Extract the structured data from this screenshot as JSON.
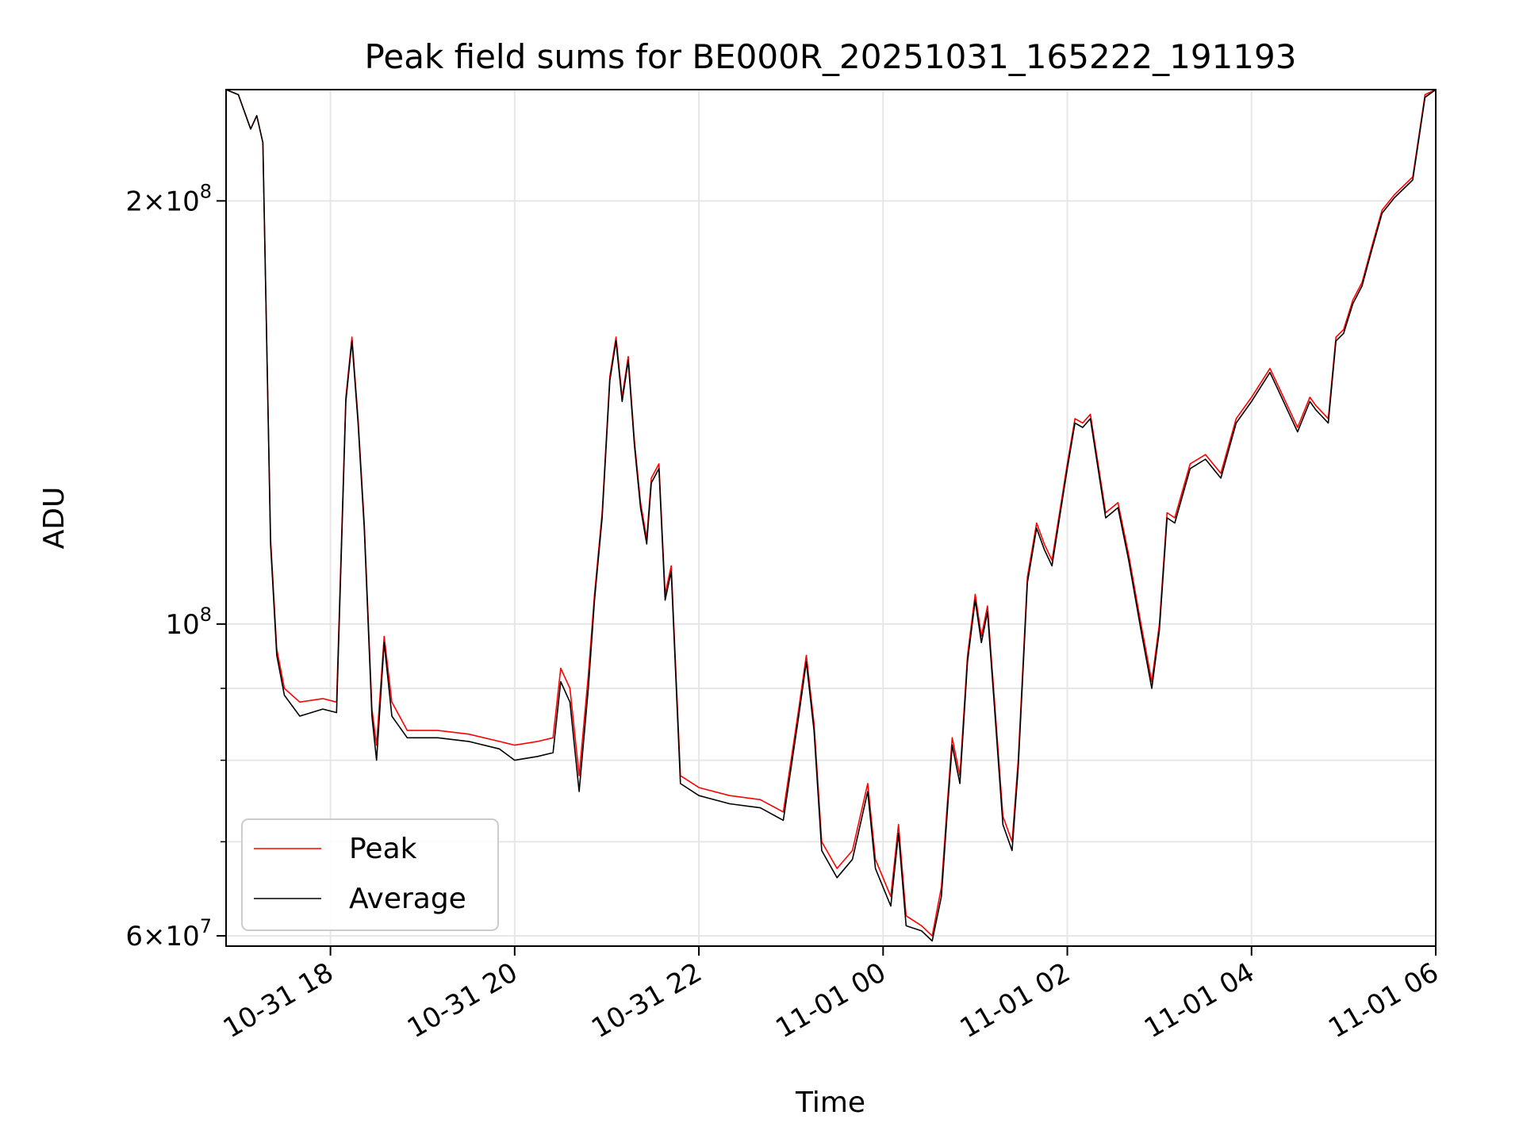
{
  "chart_data": {
    "type": "line",
    "title": "Peak field sums for BE000R_20251031_165222_191193",
    "xlabel": "Time",
    "ylabel": "ADU",
    "yscale": "log",
    "grid": true,
    "legend_position": "lower-left",
    "xlim": [
      "2025-10-31T16:52",
      "2025-11-01T06:00"
    ],
    "ylim": [
      59000000,
      240000000
    ],
    "x_ticks": [
      {
        "t": "2025-10-31T18:00",
        "label": "10-31 18"
      },
      {
        "t": "2025-10-31T20:00",
        "label": "10-31 20"
      },
      {
        "t": "2025-10-31T22:00",
        "label": "10-31 22"
      },
      {
        "t": "2025-11-01T00:00",
        "label": "11-01 00"
      },
      {
        "t": "2025-11-01T02:00",
        "label": "11-01 02"
      },
      {
        "t": "2025-11-01T04:00",
        "label": "11-01 04"
      },
      {
        "t": "2025-11-01T06:00",
        "label": "11-01 06"
      }
    ],
    "y_major_ticks": [
      {
        "v": 60000000,
        "mantissa": "6",
        "times": "×",
        "base": "10",
        "exp": "7"
      },
      {
        "v": 100000000,
        "mantissa": "",
        "times": "",
        "base": "10",
        "exp": "8"
      },
      {
        "v": 200000000,
        "mantissa": "2",
        "times": "×",
        "base": "10",
        "exp": "8"
      }
    ],
    "y_minor_ticks": [
      70000000,
      80000000,
      90000000
    ],
    "series": [
      {
        "name": "Peak",
        "color": "#ff0000",
        "points": [
          [
            "2025-10-31T16:52",
            240000000
          ],
          [
            "2025-10-31T17:00",
            238000000
          ],
          [
            "2025-10-31T17:08",
            225000000
          ],
          [
            "2025-10-31T17:12",
            230000000
          ],
          [
            "2025-10-31T17:16",
            220000000
          ],
          [
            "2025-10-31T17:21",
            115000000
          ],
          [
            "2025-10-31T17:25",
            96000000
          ],
          [
            "2025-10-31T17:30",
            90000000
          ],
          [
            "2025-10-31T17:40",
            88000000
          ],
          [
            "2025-10-31T17:55",
            88500000
          ],
          [
            "2025-10-31T18:04",
            88000000
          ],
          [
            "2025-10-31T18:10",
            145000000
          ],
          [
            "2025-10-31T18:14",
            160000000
          ],
          [
            "2025-10-31T18:18",
            140000000
          ],
          [
            "2025-10-31T18:22",
            118000000
          ],
          [
            "2025-10-31T18:27",
            87000000
          ],
          [
            "2025-10-31T18:30",
            82000000
          ],
          [
            "2025-10-31T18:35",
            98000000
          ],
          [
            "2025-10-31T18:40",
            88000000
          ],
          [
            "2025-10-31T18:50",
            84000000
          ],
          [
            "2025-10-31T19:10",
            84000000
          ],
          [
            "2025-10-31T19:30",
            83500000
          ],
          [
            "2025-10-31T19:50",
            82500000
          ],
          [
            "2025-10-31T20:00",
            82000000
          ],
          [
            "2025-10-31T20:15",
            82500000
          ],
          [
            "2025-10-31T20:25",
            83000000
          ],
          [
            "2025-10-31T20:30",
            93000000
          ],
          [
            "2025-10-31T20:36",
            90000000
          ],
          [
            "2025-10-31T20:42",
            78000000
          ],
          [
            "2025-10-31T20:48",
            92000000
          ],
          [
            "2025-10-31T20:52",
            105000000
          ],
          [
            "2025-10-31T20:57",
            120000000
          ],
          [
            "2025-10-31T21:02",
            150000000
          ],
          [
            "2025-10-31T21:06",
            160000000
          ],
          [
            "2025-10-31T21:10",
            145000000
          ],
          [
            "2025-10-31T21:14",
            155000000
          ],
          [
            "2025-10-31T21:18",
            135000000
          ],
          [
            "2025-10-31T21:22",
            122000000
          ],
          [
            "2025-10-31T21:26",
            115000000
          ],
          [
            "2025-10-31T21:29",
            127000000
          ],
          [
            "2025-10-31T21:34",
            130000000
          ],
          [
            "2025-10-31T21:38",
            105000000
          ],
          [
            "2025-10-31T21:42",
            110000000
          ],
          [
            "2025-10-31T21:48",
            78000000
          ],
          [
            "2025-10-31T22:00",
            76500000
          ],
          [
            "2025-10-31T22:20",
            75500000
          ],
          [
            "2025-10-31T22:40",
            75000000
          ],
          [
            "2025-10-31T22:55",
            73500000
          ],
          [
            "2025-10-31T23:05",
            87000000
          ],
          [
            "2025-10-31T23:10",
            95000000
          ],
          [
            "2025-10-31T23:15",
            85000000
          ],
          [
            "2025-10-31T23:20",
            70000000
          ],
          [
            "2025-10-31T23:30",
            67000000
          ],
          [
            "2025-10-31T23:40",
            69000000
          ],
          [
            "2025-10-31T23:50",
            77000000
          ],
          [
            "2025-10-31T23:55",
            68000000
          ],
          [
            "2025-11-01T00:05",
            64000000
          ],
          [
            "2025-11-01T00:10",
            72000000
          ],
          [
            "2025-11-01T00:15",
            62000000
          ],
          [
            "2025-11-01T00:25",
            61000000
          ],
          [
            "2025-11-01T00:32",
            60000000
          ],
          [
            "2025-11-01T00:38",
            65000000
          ],
          [
            "2025-11-01T00:42",
            75000000
          ],
          [
            "2025-11-01T00:45",
            83000000
          ],
          [
            "2025-11-01T00:50",
            78000000
          ],
          [
            "2025-11-01T00:55",
            95000000
          ],
          [
            "2025-11-01T01:00",
            105000000
          ],
          [
            "2025-11-01T01:04",
            98000000
          ],
          [
            "2025-11-01T01:08",
            103000000
          ],
          [
            "2025-11-01T01:12",
            90000000
          ],
          [
            "2025-11-01T01:18",
            73000000
          ],
          [
            "2025-11-01T01:24",
            70000000
          ],
          [
            "2025-11-01T01:28",
            80000000
          ],
          [
            "2025-11-01T01:34",
            108000000
          ],
          [
            "2025-11-01T01:40",
            118000000
          ],
          [
            "2025-11-01T01:45",
            114000000
          ],
          [
            "2025-11-01T01:50",
            111000000
          ],
          [
            "2025-11-01T02:00",
            130000000
          ],
          [
            "2025-11-01T02:05",
            140000000
          ],
          [
            "2025-11-01T02:10",
            139000000
          ],
          [
            "2025-11-01T02:15",
            141000000
          ],
          [
            "2025-11-01T02:25",
            120000000
          ],
          [
            "2025-11-01T02:33",
            122000000
          ],
          [
            "2025-11-01T02:40",
            112000000
          ],
          [
            "2025-11-01T02:48",
            100000000
          ],
          [
            "2025-11-01T02:55",
            91000000
          ],
          [
            "2025-11-01T03:00",
            100000000
          ],
          [
            "2025-11-01T03:05",
            120000000
          ],
          [
            "2025-11-01T03:10",
            119000000
          ],
          [
            "2025-11-01T03:20",
            130000000
          ],
          [
            "2025-11-01T03:30",
            132000000
          ],
          [
            "2025-11-01T03:40",
            128000000
          ],
          [
            "2025-11-01T03:50",
            140000000
          ],
          [
            "2025-11-01T04:00",
            145000000
          ],
          [
            "2025-11-01T04:12",
            152000000
          ],
          [
            "2025-11-01T04:17",
            148000000
          ],
          [
            "2025-11-01T04:30",
            138000000
          ],
          [
            "2025-11-01T04:38",
            145000000
          ],
          [
            "2025-11-01T04:42",
            143000000
          ],
          [
            "2025-11-01T04:50",
            140000000
          ],
          [
            "2025-11-01T04:55",
            160000000
          ],
          [
            "2025-11-01T05:00",
            162000000
          ],
          [
            "2025-11-01T05:06",
            170000000
          ],
          [
            "2025-11-01T05:12",
            175000000
          ],
          [
            "2025-11-01T05:18",
            185000000
          ],
          [
            "2025-11-01T05:25",
            197000000
          ],
          [
            "2025-11-01T05:33",
            202000000
          ],
          [
            "2025-11-01T05:45",
            208000000
          ],
          [
            "2025-11-01T05:53",
            238000000
          ],
          [
            "2025-11-01T06:00",
            240000000
          ]
        ]
      },
      {
        "name": "Average",
        "color": "#000000",
        "points": [
          [
            "2025-10-31T16:52",
            240000000
          ],
          [
            "2025-10-31T17:00",
            238000000
          ],
          [
            "2025-10-31T17:08",
            225000000
          ],
          [
            "2025-10-31T17:12",
            230000000
          ],
          [
            "2025-10-31T17:16",
            220000000
          ],
          [
            "2025-10-31T17:21",
            114000000
          ],
          [
            "2025-10-31T17:25",
            95000000
          ],
          [
            "2025-10-31T17:30",
            89000000
          ],
          [
            "2025-10-31T17:40",
            86000000
          ],
          [
            "2025-10-31T17:55",
            87000000
          ],
          [
            "2025-10-31T18:04",
            86500000
          ],
          [
            "2025-10-31T18:10",
            144000000
          ],
          [
            "2025-10-31T18:14",
            159000000
          ],
          [
            "2025-10-31T18:18",
            139000000
          ],
          [
            "2025-10-31T18:22",
            117000000
          ],
          [
            "2025-10-31T18:27",
            86000000
          ],
          [
            "2025-10-31T18:30",
            80000000
          ],
          [
            "2025-10-31T18:35",
            97000000
          ],
          [
            "2025-10-31T18:40",
            86000000
          ],
          [
            "2025-10-31T18:50",
            83000000
          ],
          [
            "2025-10-31T19:10",
            83000000
          ],
          [
            "2025-10-31T19:30",
            82500000
          ],
          [
            "2025-10-31T19:50",
            81500000
          ],
          [
            "2025-10-31T20:00",
            80000000
          ],
          [
            "2025-10-31T20:15",
            80500000
          ],
          [
            "2025-10-31T20:25",
            81000000
          ],
          [
            "2025-10-31T20:30",
            91000000
          ],
          [
            "2025-10-31T20:36",
            88000000
          ],
          [
            "2025-10-31T20:42",
            76000000
          ],
          [
            "2025-10-31T20:48",
            90000000
          ],
          [
            "2025-10-31T20:52",
            104000000
          ],
          [
            "2025-10-31T20:57",
            119000000
          ],
          [
            "2025-10-31T21:02",
            149000000
          ],
          [
            "2025-10-31T21:06",
            159000000
          ],
          [
            "2025-10-31T21:10",
            144000000
          ],
          [
            "2025-10-31T21:14",
            154000000
          ],
          [
            "2025-10-31T21:18",
            134000000
          ],
          [
            "2025-10-31T21:22",
            121000000
          ],
          [
            "2025-10-31T21:26",
            114000000
          ],
          [
            "2025-10-31T21:29",
            126000000
          ],
          [
            "2025-10-31T21:34",
            129000000
          ],
          [
            "2025-10-31T21:38",
            104000000
          ],
          [
            "2025-10-31T21:42",
            109000000
          ],
          [
            "2025-10-31T21:48",
            77000000
          ],
          [
            "2025-10-31T22:00",
            75500000
          ],
          [
            "2025-10-31T22:20",
            74500000
          ],
          [
            "2025-10-31T22:40",
            74000000
          ],
          [
            "2025-10-31T22:55",
            72500000
          ],
          [
            "2025-10-31T23:05",
            86000000
          ],
          [
            "2025-10-31T23:10",
            94000000
          ],
          [
            "2025-10-31T23:15",
            84000000
          ],
          [
            "2025-10-31T23:20",
            69000000
          ],
          [
            "2025-10-31T23:30",
            66000000
          ],
          [
            "2025-10-31T23:40",
            68000000
          ],
          [
            "2025-10-31T23:50",
            76000000
          ],
          [
            "2025-10-31T23:55",
            67000000
          ],
          [
            "2025-11-01T00:05",
            63000000
          ],
          [
            "2025-11-01T00:10",
            71000000
          ],
          [
            "2025-11-01T00:15",
            61000000
          ],
          [
            "2025-11-01T00:25",
            60500000
          ],
          [
            "2025-11-01T00:32",
            59500000
          ],
          [
            "2025-11-01T00:38",
            64000000
          ],
          [
            "2025-11-01T00:42",
            74000000
          ],
          [
            "2025-11-01T00:45",
            82000000
          ],
          [
            "2025-11-01T00:50",
            77000000
          ],
          [
            "2025-11-01T00:55",
            94000000
          ],
          [
            "2025-11-01T01:00",
            104000000
          ],
          [
            "2025-11-01T01:04",
            97000000
          ],
          [
            "2025-11-01T01:08",
            102000000
          ],
          [
            "2025-11-01T01:12",
            89000000
          ],
          [
            "2025-11-01T01:18",
            72000000
          ],
          [
            "2025-11-01T01:24",
            69000000
          ],
          [
            "2025-11-01T01:28",
            79000000
          ],
          [
            "2025-11-01T01:34",
            107000000
          ],
          [
            "2025-11-01T01:40",
            117000000
          ],
          [
            "2025-11-01T01:45",
            113000000
          ],
          [
            "2025-11-01T01:50",
            110000000
          ],
          [
            "2025-11-01T02:00",
            129000000
          ],
          [
            "2025-11-01T02:05",
            139000000
          ],
          [
            "2025-11-01T02:10",
            138000000
          ],
          [
            "2025-11-01T02:15",
            140000000
          ],
          [
            "2025-11-01T02:25",
            119000000
          ],
          [
            "2025-11-01T02:33",
            121000000
          ],
          [
            "2025-11-01T02:40",
            111000000
          ],
          [
            "2025-11-01T02:48",
            99000000
          ],
          [
            "2025-11-01T02:55",
            90000000
          ],
          [
            "2025-11-01T03:00",
            99000000
          ],
          [
            "2025-11-01T03:05",
            119000000
          ],
          [
            "2025-11-01T03:10",
            118000000
          ],
          [
            "2025-11-01T03:20",
            129000000
          ],
          [
            "2025-11-01T03:30",
            131000000
          ],
          [
            "2025-11-01T03:40",
            127000000
          ],
          [
            "2025-11-01T03:50",
            139000000
          ],
          [
            "2025-11-01T04:00",
            144000000
          ],
          [
            "2025-11-01T04:12",
            151000000
          ],
          [
            "2025-11-01T04:17",
            147000000
          ],
          [
            "2025-11-01T04:30",
            137000000
          ],
          [
            "2025-11-01T04:38",
            144000000
          ],
          [
            "2025-11-01T04:42",
            142000000
          ],
          [
            "2025-11-01T04:50",
            139000000
          ],
          [
            "2025-11-01T04:55",
            159000000
          ],
          [
            "2025-11-01T05:00",
            161000000
          ],
          [
            "2025-11-01T05:06",
            169000000
          ],
          [
            "2025-11-01T05:12",
            174000000
          ],
          [
            "2025-11-01T05:18",
            184000000
          ],
          [
            "2025-11-01T05:25",
            196000000
          ],
          [
            "2025-11-01T05:33",
            201000000
          ],
          [
            "2025-11-01T05:45",
            207000000
          ],
          [
            "2025-11-01T05:53",
            237000000
          ],
          [
            "2025-11-01T06:00",
            240000000
          ]
        ]
      }
    ]
  }
}
